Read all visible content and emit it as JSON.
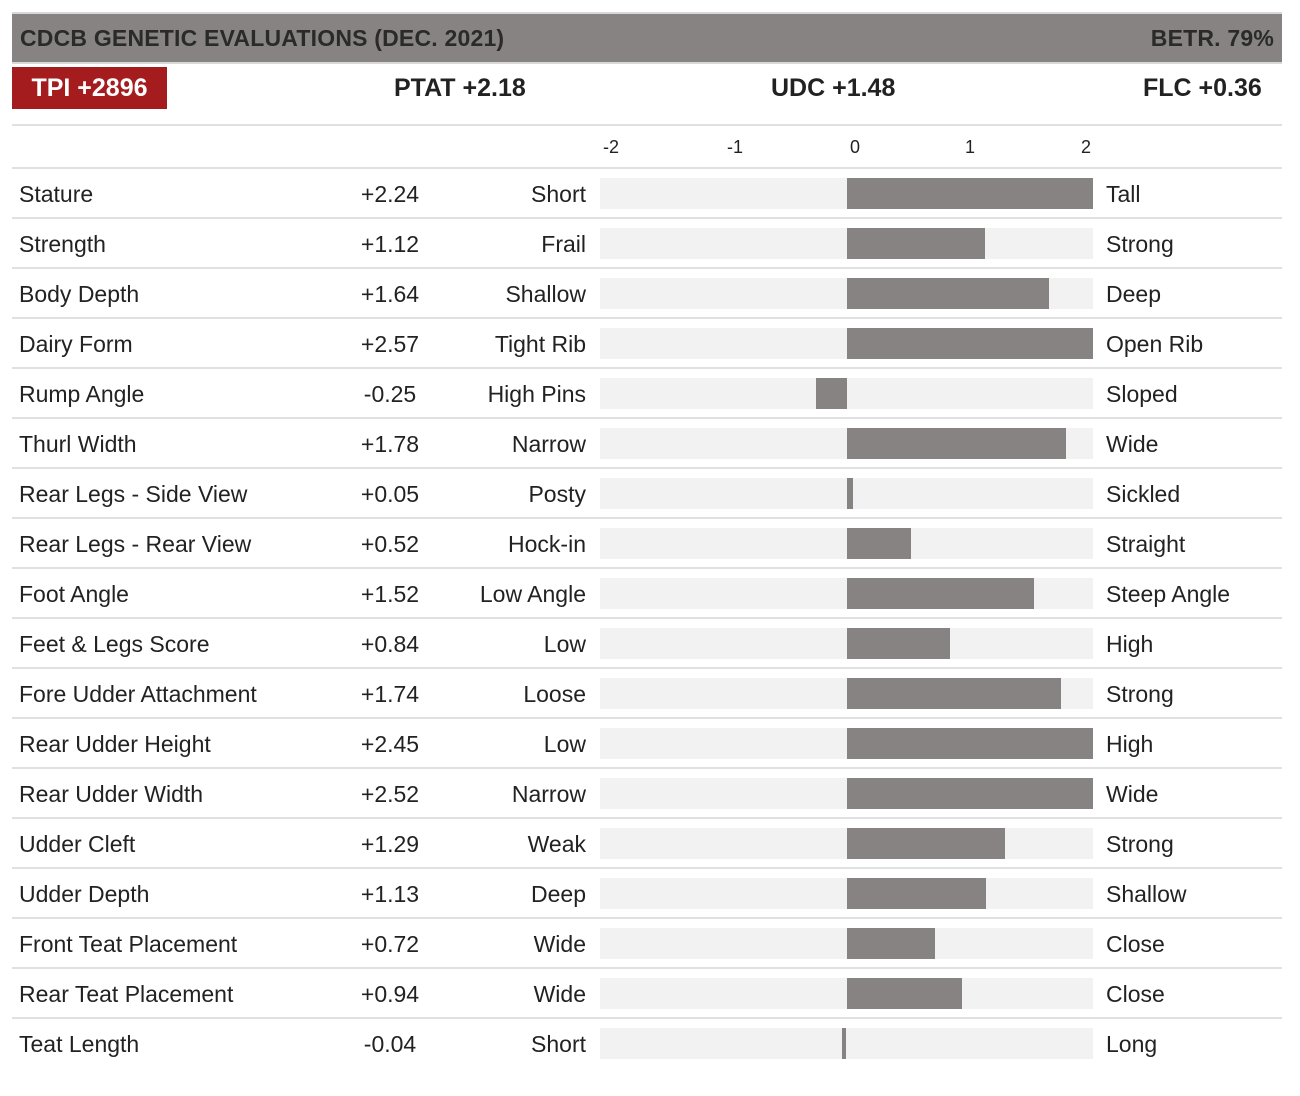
{
  "header": {
    "title": "CDCB GENETIC EVALUATIONS (DEC. 2021)",
    "reliability": "BETR. 79%"
  },
  "summary": {
    "tpi": "TPI +2896",
    "ptat": "PTAT +2.18",
    "udc": "UDC +1.48",
    "flc": "FLC +0.36"
  },
  "colors": {
    "header_bg": "#888383",
    "badge_bg": "#a51c1f",
    "bar": "#888383",
    "track": "#f2f2f2"
  },
  "chart_data": {
    "type": "bar",
    "orientation": "horizontal",
    "xlim": [
      -2,
      2
    ],
    "ticks": [
      "-2",
      "-1",
      "0",
      "1",
      "2"
    ],
    "grid": false,
    "rows": [
      {
        "trait": "Stature",
        "display": "+2.24",
        "value": 2.24,
        "low": "Short",
        "high": "Tall"
      },
      {
        "trait": "Strength",
        "display": "+1.12",
        "value": 1.12,
        "low": "Frail",
        "high": "Strong"
      },
      {
        "trait": "Body Depth",
        "display": "+1.64",
        "value": 1.64,
        "low": "Shallow",
        "high": "Deep"
      },
      {
        "trait": "Dairy Form",
        "display": "+2.57",
        "value": 2.57,
        "low": "Tight Rib",
        "high": "Open Rib"
      },
      {
        "trait": "Rump Angle",
        "display": "-0.25",
        "value": -0.25,
        "low": "High Pins",
        "high": "Sloped"
      },
      {
        "trait": "Thurl Width",
        "display": "+1.78",
        "value": 1.78,
        "low": "Narrow",
        "high": "Wide"
      },
      {
        "trait": "Rear Legs - Side View",
        "display": "+0.05",
        "value": 0.05,
        "low": "Posty",
        "high": "Sickled"
      },
      {
        "trait": "Rear Legs - Rear View",
        "display": "+0.52",
        "value": 0.52,
        "low": "Hock-in",
        "high": "Straight"
      },
      {
        "trait": "Foot Angle",
        "display": "+1.52",
        "value": 1.52,
        "low": "Low Angle",
        "high": "Steep Angle"
      },
      {
        "trait": "Feet & Legs Score",
        "display": "+0.84",
        "value": 0.84,
        "low": "Low",
        "high": "High"
      },
      {
        "trait": "Fore Udder Attachment",
        "display": "+1.74",
        "value": 1.74,
        "low": "Loose",
        "high": "Strong"
      },
      {
        "trait": "Rear Udder Height",
        "display": "+2.45",
        "value": 2.45,
        "low": "Low",
        "high": "High"
      },
      {
        "trait": "Rear Udder Width",
        "display": "+2.52",
        "value": 2.52,
        "low": "Narrow",
        "high": "Wide"
      },
      {
        "trait": "Udder Cleft",
        "display": "+1.29",
        "value": 1.29,
        "low": "Weak",
        "high": "Strong"
      },
      {
        "trait": "Udder Depth",
        "display": "+1.13",
        "value": 1.13,
        "low": "Deep",
        "high": "Shallow"
      },
      {
        "trait": "Front Teat Placement",
        "display": "+0.72",
        "value": 0.72,
        "low": "Wide",
        "high": "Close"
      },
      {
        "trait": "Rear Teat Placement",
        "display": "+0.94",
        "value": 0.94,
        "low": "Wide",
        "high": "Close"
      },
      {
        "trait": "Teat Length",
        "display": "-0.04",
        "value": -0.04,
        "low": "Short",
        "high": "Long"
      }
    ]
  }
}
